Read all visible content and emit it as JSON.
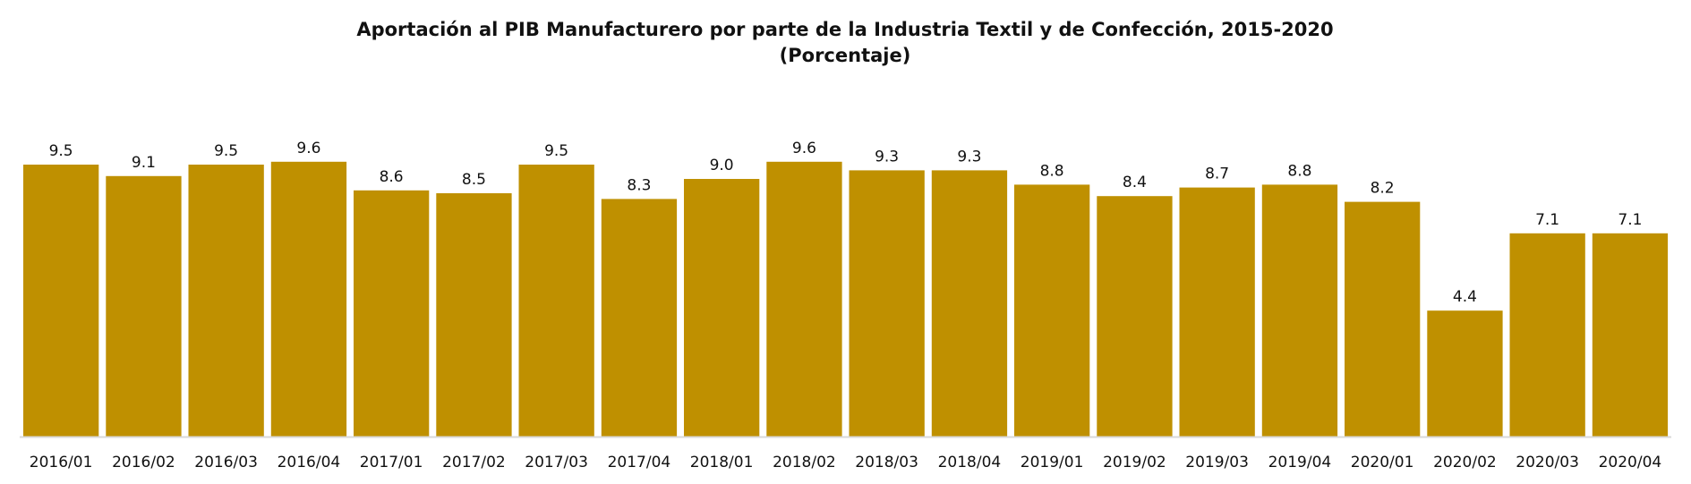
{
  "chart_data": {
    "type": "bar",
    "title": "Aportación al PIB Manufacturero por parte de la Industria Textil y de Confección, 2015-2020",
    "subtitle": "(Porcentaje)",
    "xlabel": "",
    "ylabel": "",
    "categories": [
      "2016/01",
      "2016/02",
      "2016/03",
      "2016/04",
      "2017/01",
      "2017/02",
      "2017/03",
      "2017/04",
      "2018/01",
      "2018/02",
      "2018/03",
      "2018/04",
      "2019/01",
      "2019/02",
      "2019/03",
      "2019/04",
      "2020/01",
      "2020/02",
      "2020/03",
      "2020/04"
    ],
    "values": [
      9.5,
      9.1,
      9.5,
      9.6,
      8.6,
      8.5,
      9.5,
      8.3,
      9.0,
      9.6,
      9.3,
      9.3,
      8.8,
      8.4,
      8.7,
      8.8,
      8.2,
      4.4,
      7.1,
      7.1
    ],
    "value_labels": [
      "9.5",
      "9.1",
      "9.5",
      "9.6",
      "8.6",
      "8.5",
      "9.5",
      "8.3",
      "9.0",
      "9.6",
      "9.3",
      "9.3",
      "8.8",
      "8.4",
      "8.7",
      "8.8",
      "8.2",
      "4.4",
      "7.1",
      "7.1"
    ],
    "ylim": [
      0,
      10
    ],
    "grid": false,
    "legend": "none",
    "bar_color": "#BF9000",
    "axis_color": "#d9d9d9"
  }
}
